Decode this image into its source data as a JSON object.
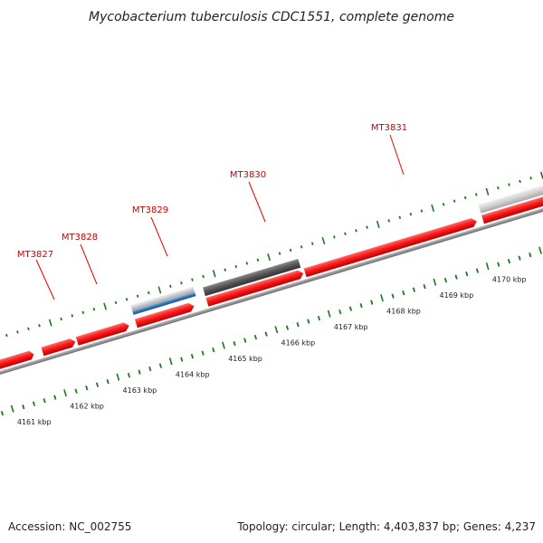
{
  "title": "Mycobacterium tuberculosis CDC1551, complete genome",
  "footer": {
    "accession": "Accession: NC_002755",
    "summary": "Topology: circular; Length: 4,403,837 bp; Genes: 4,237"
  },
  "colors": {
    "gene_fill": "#ff1a1a",
    "gene_dark": "#c00000",
    "label_color": "#cc0000",
    "backbone": "#8a8a8a",
    "tick": "#1a7a1a",
    "gray_dark": "#5a5a5a",
    "gray_light": "#cfcfcf",
    "blue": "#3a78b8"
  },
  "gene_labels": [
    "MT3827",
    "MT3828",
    "MT3829",
    "MT3830",
    "MT3831"
  ],
  "scale_labels": [
    {
      "kbp": 4161,
      "text": "4161 kbp"
    },
    {
      "kbp": 4162,
      "text": "4162 kbp"
    },
    {
      "kbp": 4163,
      "text": "4163 kbp"
    },
    {
      "kbp": 4164,
      "text": "4164 kbp"
    },
    {
      "kbp": 4165,
      "text": "4165 kbp"
    },
    {
      "kbp": 4166,
      "text": "4166 kbp"
    },
    {
      "kbp": 4167,
      "text": "4167 kbp"
    },
    {
      "kbp": 4168,
      "text": "4168 kbp"
    },
    {
      "kbp": 4169,
      "text": "4169 kbp"
    },
    {
      "kbp": 4170,
      "text": "4170 kbp"
    }
  ]
}
